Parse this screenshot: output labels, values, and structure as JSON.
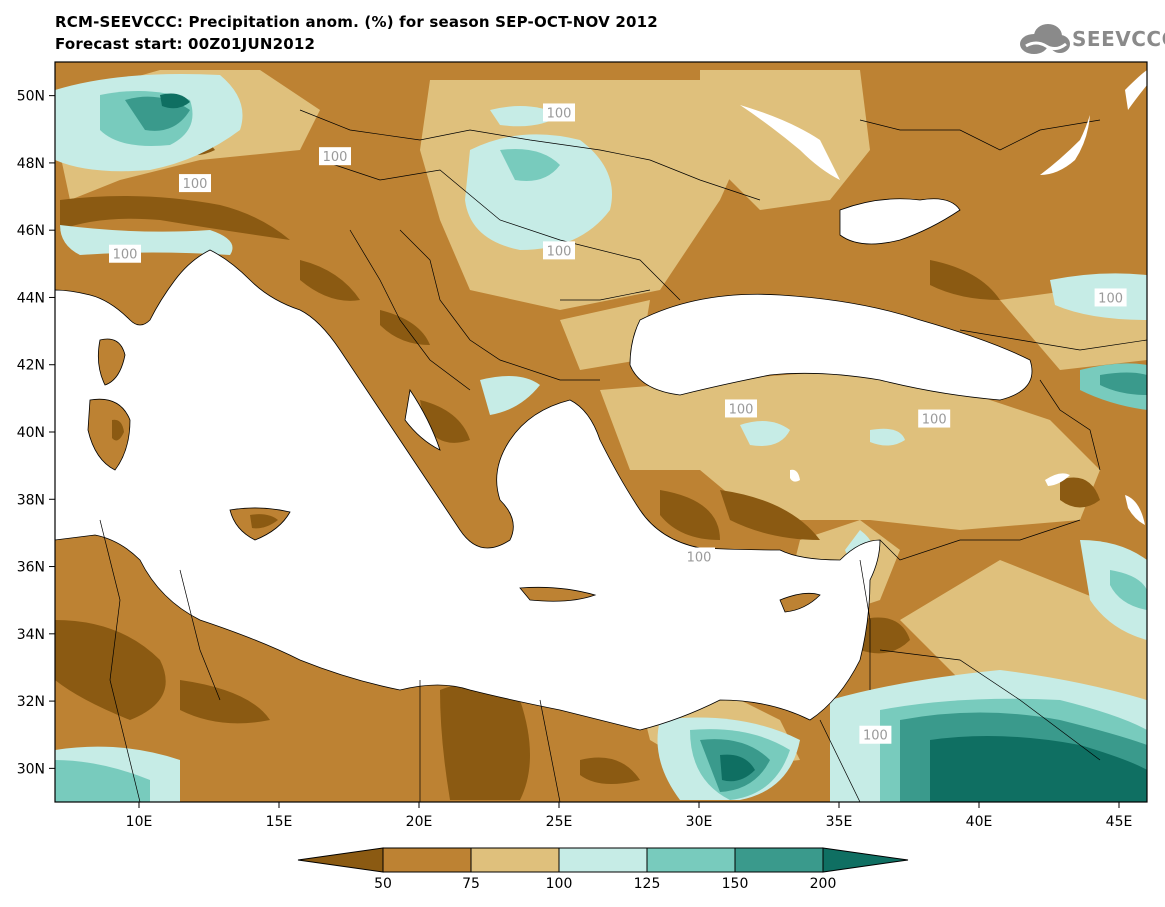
{
  "title": {
    "line1": "RCM-SEEVCCC: Precipitation anom. (%) for season SEP-OCT-NOV 2012",
    "line2": "Forecast start: 00Z01JUN2012"
  },
  "logo": {
    "text": "SEEVCCC",
    "icon": "cloud-icon"
  },
  "axes": {
    "lat_labels": [
      "50N",
      "48N",
      "46N",
      "44N",
      "42N",
      "40N",
      "38N",
      "36N",
      "34N",
      "32N",
      "30N"
    ],
    "lat_values": [
      50,
      48,
      46,
      44,
      42,
      40,
      38,
      36,
      34,
      32,
      30
    ],
    "lon_labels": [
      "10E",
      "15E",
      "20E",
      "25E",
      "30E",
      "35E",
      "40E",
      "45E"
    ],
    "lon_values": [
      10,
      15,
      20,
      25,
      30,
      35,
      40,
      45
    ],
    "lon_range": [
      7,
      46
    ],
    "lat_range": [
      29,
      51
    ]
  },
  "contour_labels": [
    {
      "text": "100",
      "lon": 25.0,
      "lat": 49.5
    },
    {
      "text": "100",
      "lon": 17.0,
      "lat": 48.2
    },
    {
      "text": "100",
      "lon": 12.0,
      "lat": 47.4
    },
    {
      "text": "100",
      "lon": 9.5,
      "lat": 45.3
    },
    {
      "text": "100",
      "lon": 25.0,
      "lat": 45.4
    },
    {
      "text": "100",
      "lon": 44.7,
      "lat": 44.0
    },
    {
      "text": "100",
      "lon": 31.5,
      "lat": 40.7
    },
    {
      "text": "100",
      "lon": 38.4,
      "lat": 40.4
    },
    {
      "text": "100",
      "lon": 30.0,
      "lat": 36.3
    },
    {
      "text": "100",
      "lon": 36.3,
      "lat": 31.0
    }
  ],
  "legend": {
    "ticks": [
      "50",
      "75",
      "100",
      "125",
      "150",
      "200"
    ],
    "colors": [
      "#8b5a12",
      "#bd8233",
      "#dfc07c",
      "#c6ece6",
      "#78cbbd",
      "#3a9a8c",
      "#0f6f62"
    ]
  },
  "colors": {
    "sea": "#ffffff",
    "less_than_50": "#8b5a12",
    "range_50_75": "#bd8233",
    "range_75_100": "#dfc07c",
    "range_100_125": "#c6ece6",
    "range_125_150": "#78cbbd",
    "range_150_200": "#3a9a8c",
    "greater_than_200": "#0f6f62"
  }
}
